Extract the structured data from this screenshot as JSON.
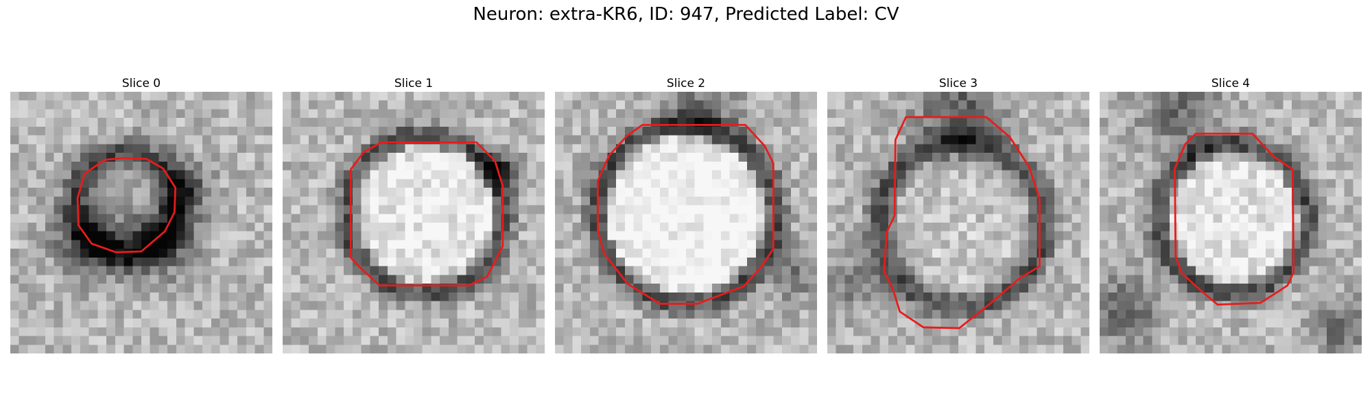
{
  "figure": {
    "title": "Neuron: extra-KR6, ID: 947, Predicted Label: CV"
  },
  "panels": [
    {
      "title": "Slice 0"
    },
    {
      "title": "Slice 1"
    },
    {
      "title": "Slice 2"
    },
    {
      "title": "Slice 3"
    },
    {
      "title": "Slice 4"
    }
  ],
  "colors": {
    "contour": "#e81c1c",
    "background": "#ffffff"
  }
}
